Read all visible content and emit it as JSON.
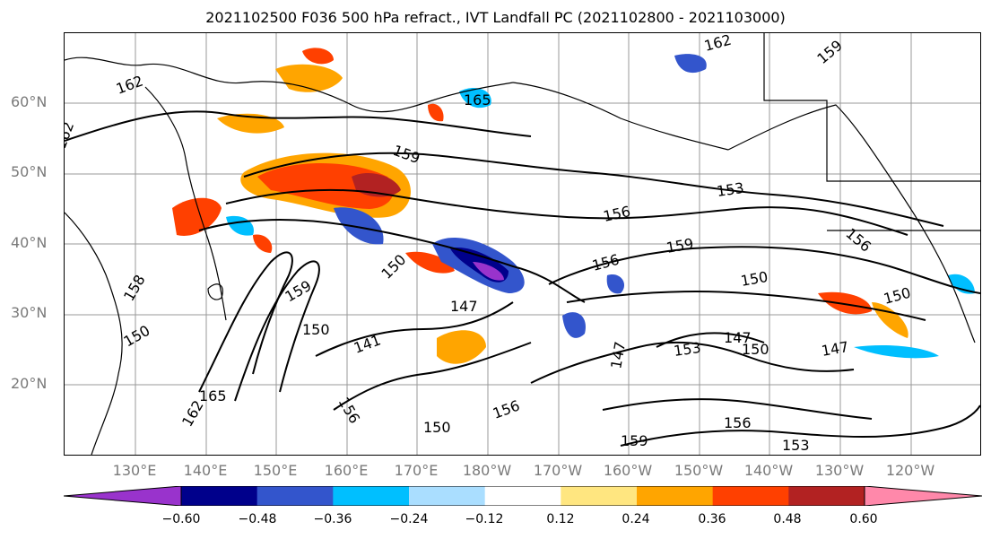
{
  "title": "2021102500 F036 500 hPa refract., IVT Landfall PC (2021102800 - 2021103000)",
  "lat_labels": [
    "60°N",
    "50°N",
    "40°N",
    "30°N",
    "20°N"
  ],
  "lon_labels": [
    "130°E",
    "140°E",
    "150°E",
    "160°E",
    "170°E",
    "180°W",
    "170°W",
    "160°W",
    "150°W",
    "140°W",
    "130°W",
    "120°W"
  ],
  "colorbar": {
    "colors": [
      "#9933cc",
      "#00008b",
      "#3355cc",
      "#00bfff",
      "#aadeff",
      "#ffffff",
      "#ffe680",
      "#ffa500",
      "#ff4000",
      "#b22222",
      "#ff88aa"
    ],
    "ticks": [
      "−0.60",
      "−0.48",
      "−0.36",
      "−0.24",
      "−0.12",
      "0.12",
      "0.24",
      "0.36",
      "0.48",
      "0.60"
    ]
  },
  "contour_labels": [
    "162",
    "165",
    "162",
    "159",
    "153",
    "156",
    "159",
    "156",
    "150",
    "147",
    "150",
    "153",
    "147",
    "150",
    "147",
    "141",
    "150",
    "159",
    "156",
    "156",
    "150",
    "147",
    "150",
    "156",
    "159",
    "156",
    "162",
    "165",
    "159",
    "162",
    "153",
    "150",
    "158"
  ]
}
